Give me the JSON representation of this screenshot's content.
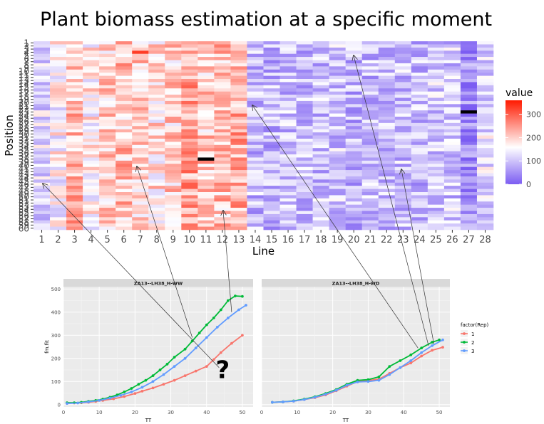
{
  "title": "Plant biomass estimation at a specific moment",
  "chart_data": [
    {
      "type": "heatmap",
      "xlabel": "Line",
      "ylabel": "Position",
      "x_categories": [
        "1",
        "2",
        "3",
        "4",
        "5",
        "6",
        "7",
        "8",
        "9",
        "10",
        "11",
        "12",
        "13",
        "14",
        "15",
        "16",
        "17",
        "18",
        "19",
        "20",
        "21",
        "22",
        "23",
        "24",
        "25",
        "26",
        "27",
        "28"
      ],
      "y_categories": [
        "1",
        "2",
        "3",
        "4",
        "5",
        "6",
        "7",
        "8",
        "9",
        "10",
        "11",
        "12",
        "13",
        "14",
        "15",
        "16",
        "17",
        "18",
        "19",
        "20",
        "21",
        "22",
        "23",
        "24",
        "25",
        "26",
        "27",
        "28",
        "29",
        "30",
        "31",
        "32",
        "33",
        "34",
        "35",
        "36",
        "37",
        "38",
        "39",
        "40",
        "41",
        "42",
        "43",
        "44",
        "45",
        "46",
        "47",
        "48",
        "49",
        "50",
        "51",
        "52",
        "53",
        "54",
        "55",
        "56",
        "57",
        "58",
        "59",
        "60"
      ],
      "legend": {
        "title": "value",
        "ticks": [
          0,
          100,
          200,
          300
        ],
        "position": "right",
        "low_color": "#7b5cf2",
        "mid_color": "#ffffff",
        "high_color": "#ff1a00"
      },
      "column_means": [
        120,
        160,
        220,
        170,
        200,
        215,
        205,
        185,
        200,
        240,
        210,
        215,
        230,
        95,
        90,
        100,
        95,
        100,
        105,
        90,
        95,
        90,
        100,
        95,
        110,
        105,
        45,
        125
      ],
      "special_cells": [
        {
          "line": "7",
          "position": "4",
          "value": 330
        },
        {
          "line": "11",
          "position": "38",
          "value": "NA"
        },
        {
          "line": "27",
          "position": "23",
          "value": "NA"
        }
      ],
      "value_range": [
        0,
        360
      ]
    },
    {
      "type": "scatter",
      "panel_title": "ZA13--LH38_H-WW",
      "xlabel": "TT",
      "ylabel": "fm.fit",
      "xlim": [
        0,
        53
      ],
      "ylim": [
        -10,
        510
      ],
      "x_ticks": [
        0,
        10,
        20,
        30,
        40,
        50
      ],
      "y_ticks": [
        0,
        100,
        200,
        300,
        400,
        500
      ],
      "annotation": "?",
      "series": [
        {
          "name": "1",
          "color": "#f8766d",
          "x": [
            1,
            3,
            5,
            7,
            9,
            11,
            14,
            17,
            20,
            22,
            25,
            28,
            31,
            34,
            37,
            40,
            42,
            44,
            47,
            50
          ],
          "y": [
            5,
            7,
            8,
            10,
            14,
            18,
            25,
            35,
            48,
            58,
            72,
            88,
            105,
            125,
            145,
            165,
            195,
            225,
            265,
            300
          ]
        },
        {
          "name": "2",
          "color": "#00ba38",
          "x": [
            1,
            3,
            5,
            7,
            9,
            11,
            13,
            15,
            17,
            19,
            21,
            23,
            25,
            27,
            29,
            31,
            34,
            36,
            38,
            40,
            42,
            44,
            46,
            48,
            50
          ],
          "y": [
            8,
            8,
            10,
            14,
            18,
            24,
            32,
            42,
            55,
            70,
            88,
            105,
            125,
            150,
            175,
            205,
            240,
            275,
            310,
            345,
            375,
            410,
            450,
            470,
            468
          ]
        },
        {
          "name": "3",
          "color": "#619cff",
          "x": [
            1,
            4,
            7,
            10,
            13,
            16,
            19,
            22,
            25,
            28,
            31,
            34,
            37,
            40,
            43,
            46,
            49,
            51
          ],
          "y": [
            5,
            7,
            12,
            18,
            28,
            40,
            55,
            75,
            100,
            130,
            165,
            200,
            245,
            290,
            335,
            375,
            410,
            430
          ]
        }
      ]
    },
    {
      "type": "scatter",
      "panel_title": "ZA13--LH38_H-WD",
      "xlabel": "TT",
      "ylabel": "",
      "xlim": [
        0,
        53
      ],
      "ylim": [
        -10,
        510
      ],
      "x_ticks": [
        0,
        10,
        20,
        30,
        40,
        50
      ],
      "legend": {
        "title": "factor(Rep)",
        "entries": [
          "1",
          "2",
          "3"
        ],
        "position": "right"
      },
      "series": [
        {
          "name": "1",
          "color": "#f8766d",
          "x": [
            3,
            6,
            9,
            12,
            15,
            18,
            21,
            24,
            27,
            30,
            33,
            36,
            39,
            42,
            45,
            48,
            51
          ],
          "y": [
            10,
            12,
            15,
            22,
            30,
            42,
            60,
            80,
            100,
            105,
            110,
            135,
            160,
            180,
            210,
            235,
            248
          ]
        },
        {
          "name": "2",
          "color": "#00ba38",
          "x": [
            3,
            6,
            9,
            12,
            15,
            18,
            21,
            24,
            27,
            30,
            33,
            36,
            39,
            42,
            45,
            48,
            50
          ],
          "y": [
            10,
            12,
            16,
            24,
            34,
            48,
            65,
            88,
            105,
            108,
            120,
            165,
            190,
            215,
            245,
            270,
            280
          ]
        },
        {
          "name": "3",
          "color": "#619cff",
          "x": [
            3,
            6,
            9,
            12,
            15,
            18,
            21,
            24,
            27,
            30,
            33,
            36,
            39,
            42,
            45,
            48,
            51
          ],
          "y": [
            10,
            12,
            15,
            22,
            32,
            45,
            62,
            84,
            98,
            100,
            105,
            130,
            160,
            190,
            225,
            255,
            280
          ]
        }
      ]
    }
  ]
}
